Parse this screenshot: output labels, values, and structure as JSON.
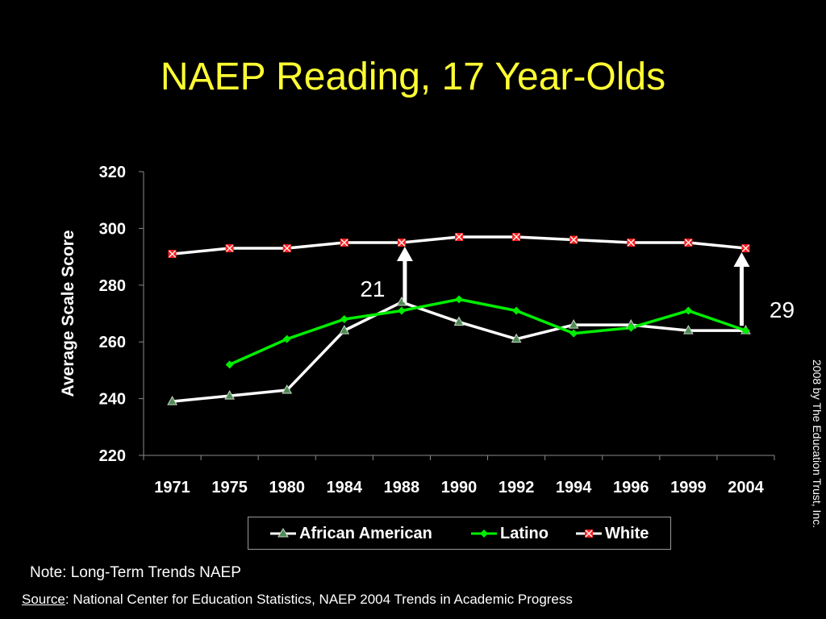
{
  "title": "NAEP Reading, 17 Year-Olds",
  "credit": "2008 by The Education Trust, Inc.",
  "note": "Note: Long-Term Trends NAEP",
  "source": {
    "label": "Source",
    "separator": ":",
    "text": " National Center for Education Statistics, NAEP 2004 Trends in Academic Progress"
  },
  "colors": {
    "title": "#ffff33",
    "african_american": "#ffffff",
    "african_american_marker": "#4f8a55",
    "latino": "#00ee00",
    "white": "#ffffff",
    "white_marker": "#ff2020"
  },
  "chart_data": {
    "type": "line",
    "title": "NAEP Reading, 17 Year-Olds",
    "xlabel": "",
    "ylabel": "Average Scale Score",
    "ylim": [
      220,
      320
    ],
    "yticks": [
      220,
      240,
      260,
      280,
      300,
      320
    ],
    "grid": false,
    "legend": "bottom",
    "categories": [
      "1971",
      "1975",
      "1980",
      "1984",
      "1988",
      "1990",
      "1992",
      "1994",
      "1996",
      "1999",
      "2004"
    ],
    "series": [
      {
        "name": "African American",
        "marker": "triangle",
        "values": [
          239,
          241,
          243,
          264,
          274,
          267,
          261,
          266,
          266,
          264,
          264
        ]
      },
      {
        "name": "Latino",
        "marker": "diamond",
        "values": [
          null,
          252,
          261,
          268,
          271,
          275,
          271,
          263,
          265,
          271,
          264
        ]
      },
      {
        "name": "White",
        "marker": "x-square",
        "values": [
          291,
          293,
          293,
          295,
          295,
          297,
          297,
          296,
          295,
          295,
          293
        ]
      }
    ],
    "annotations": [
      {
        "text": "21",
        "category": "1988",
        "from": 274,
        "to": 295
      },
      {
        "text": "29",
        "category": "2004",
        "from": 264,
        "to": 293
      }
    ]
  }
}
